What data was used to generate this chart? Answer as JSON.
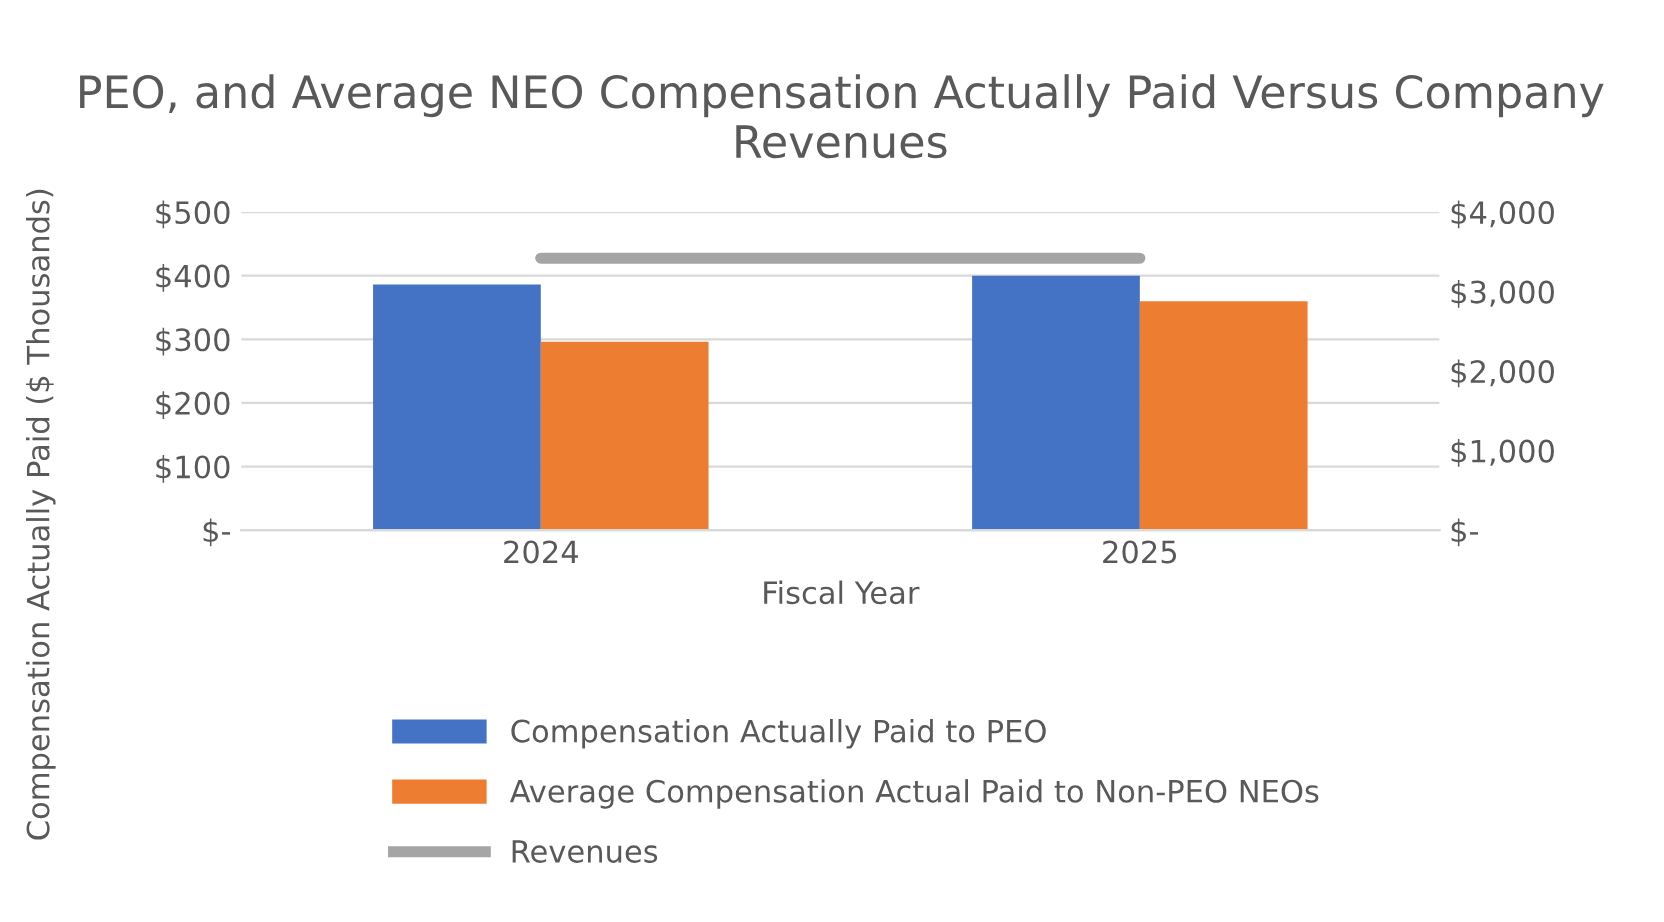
{
  "chart_data": {
    "type": "bar",
    "title": "PEO, and Average NEO Compensation Actually Paid Versus Company Revenues",
    "xlabel": "Fiscal Year",
    "ylabel": "Compensation Actually Paid ($ Thousands)",
    "categories": [
      "2024",
      "2025"
    ],
    "series": [
      {
        "name": "Compensation Actually Paid to PEO",
        "color": "#4472c4",
        "values": [
          386,
          400
        ]
      },
      {
        "name": "Average Compensation Actual Paid to Non-PEO NEOs",
        "color": "#ed7d31",
        "values": [
          296,
          360
        ]
      },
      {
        "name": "Revenues",
        "type": "line",
        "axis": "y2",
        "color": "#a5a5a5",
        "values": [
          3420,
          3420
        ]
      }
    ],
    "ylim": [
      0,
      500
    ],
    "yticks": [
      {
        "value": 0,
        "label": "$-"
      },
      {
        "value": 100,
        "label": "$100"
      },
      {
        "value": 200,
        "label": "$200"
      },
      {
        "value": 300,
        "label": "$300"
      },
      {
        "value": 400,
        "label": "$400"
      },
      {
        "value": 500,
        "label": "$500"
      }
    ],
    "y2lim": [
      0,
      4000
    ],
    "y2ticks": [
      {
        "value": 0,
        "label": "$-"
      },
      {
        "value": 1000,
        "label": "$1,000"
      },
      {
        "value": 2000,
        "label": "$2,000"
      },
      {
        "value": 3000,
        "label": "$3,000"
      },
      {
        "value": 4000,
        "label": "$4,000"
      }
    ],
    "grid": "y",
    "legend": "bottom",
    "marker": "none",
    "line_style": "solid"
  }
}
